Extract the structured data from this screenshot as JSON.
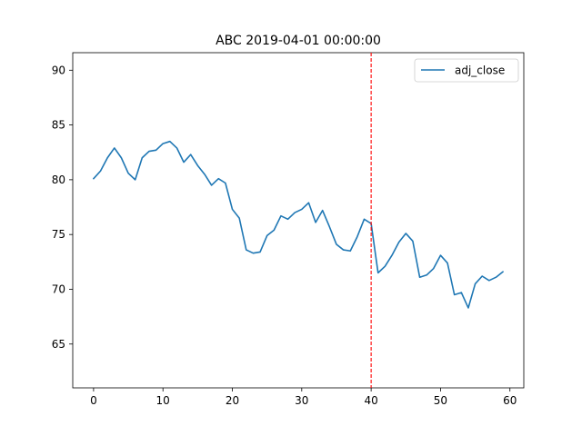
{
  "chart_data": {
    "type": "line",
    "title": "ABC 2019-04-01 00:00:00",
    "xlabel": "",
    "ylabel": "",
    "xlim": [
      -3,
      62
    ],
    "ylim": [
      61,
      91.6
    ],
    "x_ticks": [
      0,
      10,
      20,
      30,
      40,
      50,
      60
    ],
    "y_ticks": [
      65,
      70,
      75,
      80,
      85,
      90
    ],
    "grid": false,
    "legend": {
      "position": "top-right"
    },
    "series": [
      {
        "name": "adj_close",
        "color": "#1f77b4",
        "x": [
          0,
          1,
          2,
          3,
          4,
          5,
          6,
          7,
          8,
          9,
          10,
          11,
          12,
          13,
          14,
          15,
          16,
          17,
          18,
          19,
          20,
          21,
          22,
          23,
          24,
          25,
          26,
          27,
          28,
          29,
          30,
          31,
          32,
          33,
          34,
          35,
          36,
          37,
          38,
          39,
          40,
          41,
          42,
          43,
          44,
          45,
          46,
          47,
          48,
          49,
          50,
          51,
          52,
          53,
          54,
          55,
          56,
          57,
          58,
          59
        ],
        "y": [
          80.1,
          80.8,
          82.0,
          82.9,
          82.0,
          80.6,
          80.0,
          82.0,
          82.6,
          82.7,
          83.3,
          83.5,
          82.9,
          81.6,
          82.3,
          81.3,
          80.5,
          79.5,
          80.1,
          79.7,
          77.3,
          76.5,
          73.6,
          73.3,
          73.4,
          74.9,
          75.4,
          76.7,
          76.4,
          77.0,
          77.3,
          77.9,
          76.1,
          77.2,
          75.7,
          74.1,
          73.6,
          73.5,
          74.8,
          76.4,
          76.0,
          71.5,
          72.1,
          73.1,
          74.3,
          75.1,
          74.4,
          71.1,
          71.3,
          71.9,
          73.1,
          72.4,
          69.5,
          69.7,
          68.3,
          70.5,
          71.2,
          70.8,
          71.1,
          71.6
        ]
      }
    ],
    "annotations": [
      {
        "type": "vline",
        "x": 40,
        "color": "#ff0000",
        "style": "dashed"
      }
    ]
  }
}
